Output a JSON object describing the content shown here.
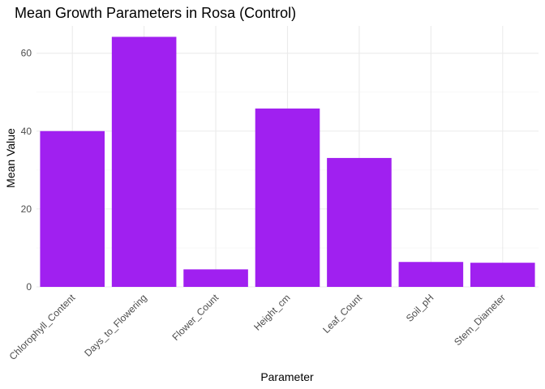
{
  "chart_data": {
    "type": "bar",
    "title": "Mean Growth Parameters in Rosa (Control)",
    "xlabel": "Parameter",
    "ylabel": "Mean Value",
    "categories": [
      "Chlorophyll_Content",
      "Days_to_Flowering",
      "Flower_Count",
      "Height_cm",
      "Leaf_Count",
      "Soil_pH",
      "Stem_Diameter"
    ],
    "values": [
      40.0,
      64.2,
      4.5,
      45.8,
      33.1,
      6.4,
      6.2
    ],
    "ylim": [
      0,
      67
    ],
    "yticks": [
      0,
      20,
      40,
      60
    ],
    "ytick_labels": [
      "0",
      "20",
      "40",
      "60"
    ],
    "grid": true,
    "bar_color": "#a020f0"
  }
}
